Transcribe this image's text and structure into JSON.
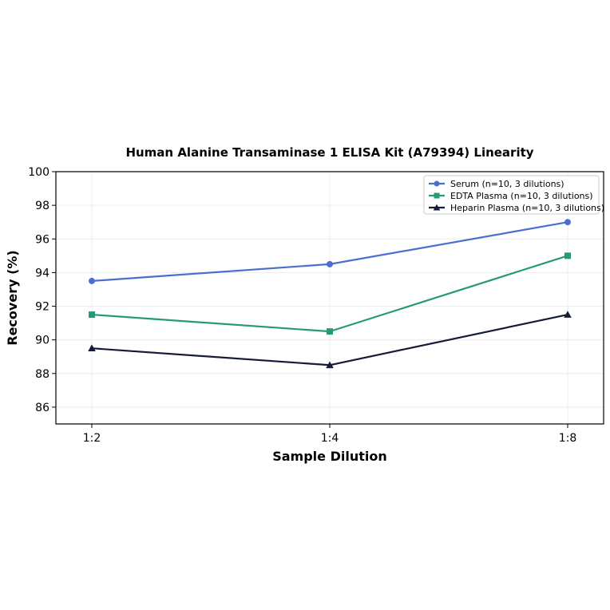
{
  "chart_data": {
    "type": "line",
    "title": "Human Alanine Transaminase 1 ELISA Kit (A79394) Linearity",
    "xlabel": "Sample Dilution",
    "ylabel": "Recovery (%)",
    "categories": [
      "1:2",
      "1:4",
      "1:8"
    ],
    "ylim": [
      85,
      100
    ],
    "yticks": [
      86,
      88,
      90,
      92,
      94,
      96,
      98,
      100
    ],
    "grid": true,
    "legend_position": "top-right",
    "series": [
      {
        "name": "Serum (n=10, 3 dilutions)",
        "values": [
          93.5,
          94.5,
          97.0
        ],
        "color": "#4a6fcf",
        "marker": "circle"
      },
      {
        "name": "EDTA Plasma (n=10, 3 dilutions)",
        "values": [
          91.5,
          90.5,
          95.0
        ],
        "color": "#27997a",
        "marker": "square"
      },
      {
        "name": "Heparin Plasma (n=10, 3 dilutions)",
        "values": [
          89.5,
          88.5,
          91.5
        ],
        "color": "#141c3a",
        "marker": "triangle"
      }
    ]
  }
}
